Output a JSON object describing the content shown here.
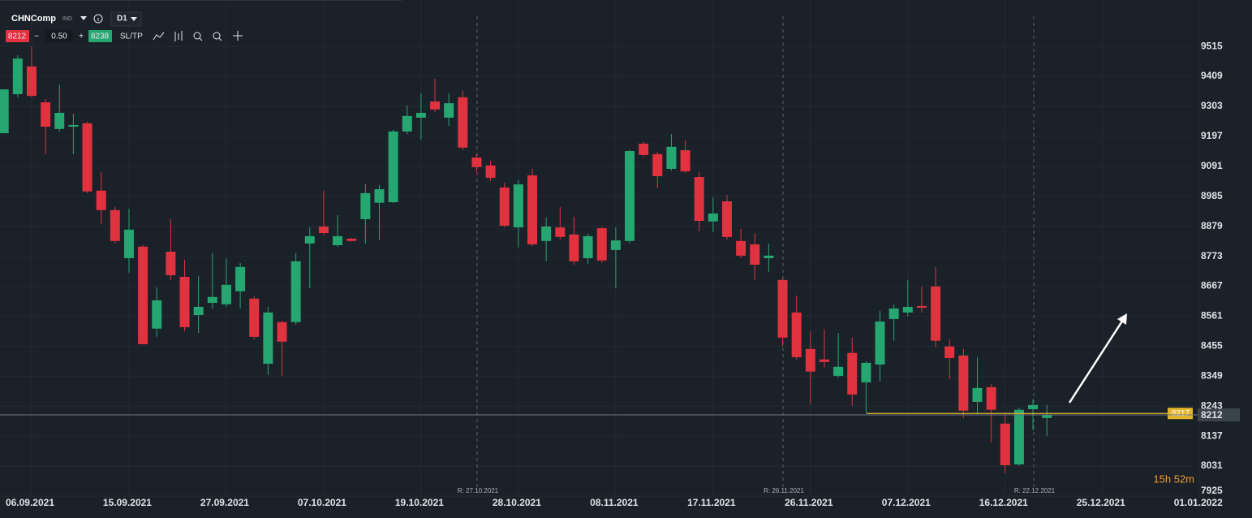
{
  "header": {
    "symbol": "CHNComp",
    "symbol_type": "IND",
    "timeframe": "D1",
    "bid": 8212,
    "minus": "−",
    "spread": "0.50",
    "plus": "+",
    "ask": 8238,
    "sltp": "SL/TP"
  },
  "chart_data": {
    "type": "candlestick",
    "categories": [
      null,
      null,
      "06.09.2021",
      null,
      null,
      null,
      null,
      null,
      null,
      "15.09.2021",
      null,
      null,
      null,
      null,
      null,
      null,
      "27.09.2021",
      null,
      null,
      null,
      null,
      null,
      null,
      "07.10.2021",
      null,
      null,
      null,
      null,
      null,
      null,
      "19.10.2021",
      null,
      null,
      null,
      null,
      null,
      null,
      "28.10.2021",
      null,
      null,
      null,
      null,
      null,
      null,
      "08.11.2021",
      null,
      null,
      null,
      null,
      null,
      null,
      "17.11.2021",
      null,
      null,
      null,
      null,
      null,
      null,
      "26.11.2021",
      null,
      null,
      null,
      null,
      null,
      null,
      "07.12.2021",
      null,
      null,
      null,
      null,
      null,
      null,
      "16.12.2021",
      null,
      null,
      null,
      null,
      null,
      null,
      "25.12.2021",
      null,
      null,
      null,
      null,
      null,
      null,
      "01.01.2022"
    ],
    "open": [
      9208,
      9346,
      9444,
      9317,
      9223,
      9231,
      9243,
      9005,
      8936,
      8766,
      8807,
      8517,
      8789,
      8700,
      8565,
      8608,
      8603,
      8649,
      8623,
      8393,
      8540,
      8540,
      8818,
      8878,
      8812,
      8835,
      8904,
      8962,
      8964,
      9214,
      9263,
      9320,
      9263,
      9335,
      9122,
      9094,
      9016,
      8875,
      9059,
      8827,
      8875,
      8850,
      8766,
      8872,
      8795,
      8827,
      9171,
      9134,
      9082,
      9148,
      9053,
      8896,
      8967,
      8827,
      8815,
      8766,
      8689,
      8574,
      8445,
      8408,
      8350,
      8431,
      8327,
      8390,
      8551,
      8574,
      8597,
      8666,
      8454,
      8422,
      8258,
      8310,
      8181,
      8037,
      8232,
      8201,
      null,
      null,
      null,
      null,
      null,
      null,
      null,
      null,
      null,
      null,
      null
    ],
    "high": [
      9363,
      9484,
      9515,
      9329,
      9380,
      9277,
      9249,
      9071,
      8947,
      8941,
      8812,
      8663,
      8904,
      8761,
      8703,
      8784,
      8766,
      8749,
      8631,
      8594,
      8545,
      8784,
      8875,
      9005,
      8918,
      8838,
      9027,
      9025,
      9220,
      9306,
      9349,
      9401,
      9349,
      9358,
      9134,
      9111,
      9033,
      9042,
      9082,
      8910,
      8947,
      8913,
      8853,
      8878,
      8875,
      9148,
      9177,
      9142,
      9205,
      9182,
      9071,
      8982,
      8990,
      8870,
      8855,
      8818,
      8695,
      8634,
      8508,
      8514,
      8502,
      8485,
      8402,
      8580,
      8603,
      8689,
      8666,
      8735,
      8479,
      8445,
      8416,
      8321,
      8215,
      8238,
      8267,
      8247,
      null,
      null,
      null,
      null,
      null,
      null,
      null,
      null,
      null,
      null,
      null
    ],
    "low": [
      9208,
      9335,
      9335,
      9134,
      9214,
      9134,
      8996,
      8887,
      8818,
      8715,
      8462,
      8488,
      8689,
      8508,
      8502,
      8588,
      8594,
      8588,
      8479,
      8353,
      8350,
      8531,
      8660,
      8847,
      8807,
      8824,
      8818,
      8829,
      8962,
      9205,
      9185,
      9283,
      9234,
      9148,
      9071,
      9039,
      8875,
      8804,
      8809,
      8755,
      8832,
      8743,
      8746,
      8749,
      8660,
      8818,
      9125,
      9013,
      9076,
      9068,
      8861,
      8858,
      8832,
      8766,
      8689,
      8718,
      8454,
      8408,
      8250,
      8379,
      8344,
      8244,
      8218,
      8330,
      8474,
      8560,
      8574,
      8451,
      8339,
      8201,
      8215,
      8115,
      8006,
      8032,
      8158,
      8138,
      null,
      null,
      null,
      null,
      null,
      null,
      null,
      null,
      null,
      null,
      null
    ],
    "close": [
      9363,
      9472,
      9340,
      9231,
      9280,
      9237,
      9002,
      8936,
      8827,
      8867,
      8462,
      8617,
      8706,
      8522,
      8594,
      8629,
      8672,
      8735,
      8488,
      8574,
      8471,
      8755,
      8844,
      8855,
      8844,
      8827,
      8996,
      9010,
      9214,
      9269,
      9280,
      9292,
      9314,
      9157,
      9088,
      9050,
      8881,
      9027,
      8815,
      8878,
      8841,
      8755,
      8844,
      8758,
      8829,
      9145,
      9131,
      9056,
      9160,
      9073,
      8898,
      8924,
      8841,
      8775,
      8743,
      8775,
      8485,
      8416,
      8365,
      8399,
      8382,
      8284,
      8396,
      8542,
      8588,
      8594,
      8591,
      8474,
      8413,
      8227,
      8307,
      8230,
      8034,
      8230,
      8247,
      8212,
      null,
      null,
      null,
      null,
      null,
      null,
      null,
      null,
      null,
      null,
      null
    ],
    "up_color": "#26a671",
    "down_color": "#e0323f",
    "ylim": [
      7922,
      9679
    ],
    "yticks": [
      9515,
      9409,
      9303,
      9197,
      9091,
      8985,
      8879,
      8773,
      8667,
      8561,
      8455,
      8349,
      8243,
      8137,
      8031,
      7925
    ],
    "grid": true,
    "current_price": 8212,
    "horizontal_line": {
      "value": 8217,
      "color": "#e3b52c"
    },
    "markers": [
      "R: 27.10.2021",
      "R: 26.11.2021",
      "R: 22.12.2021"
    ],
    "countdown": "15h 52m"
  }
}
